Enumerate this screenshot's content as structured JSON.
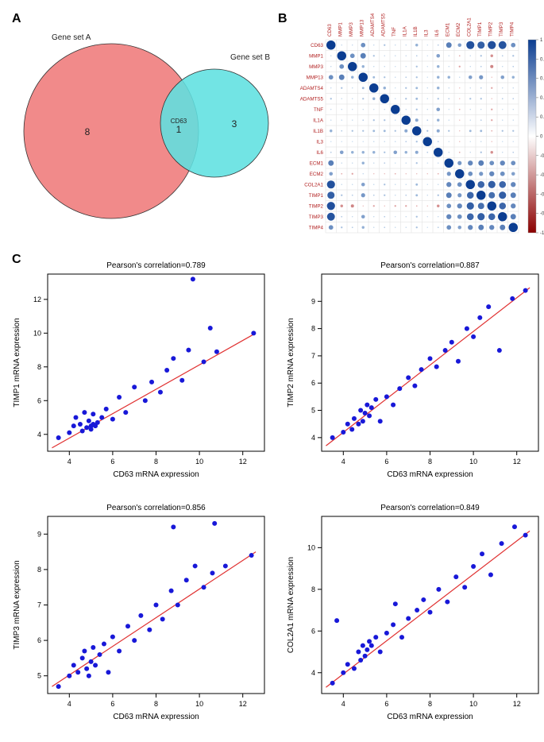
{
  "panelA": {
    "label": "A",
    "left_set_label": "Gene set A",
    "right_set_label": "Gene set B",
    "left_count": 8,
    "right_count": 3,
    "overlap_count": 1,
    "overlap_gene": "CD63",
    "left_color": "#f08080",
    "right_color": "#5fe0e0",
    "overlap_color_approx": "#8f9f9f"
  },
  "panelB": {
    "label": "B",
    "genes": [
      "CD63",
      "MMP1",
      "MMP3",
      "MMP13",
      "ADAMTS4",
      "ADAMTS5",
      "TNF",
      "IL1A",
      "IL1B",
      "IL3",
      "IL6",
      "ECM1",
      "ECM2",
      "COL2A1",
      "TIMP1",
      "TIMP2",
      "TIMP3",
      "TIMP4"
    ],
    "colorbar_min": -1,
    "colorbar_max": 1,
    "colorbar_ticks": [
      -1,
      -0.8,
      -0.6,
      -0.4,
      -0.2,
      0,
      0.2,
      0.4,
      0.6,
      0.8,
      1
    ],
    "pos_color_strong": "#0b3d91",
    "pos_color_mid": "#6fa8dc",
    "pos_color_weak": "#cfe2f3",
    "neg_color_weak": "#f4cccc",
    "neg_color_mid": "#e06666",
    "neg_color_strong": "#8b0000",
    "matrix": [
      [
        1.0,
        0.1,
        0.1,
        0.5,
        0.1,
        0.2,
        0.1,
        0.1,
        0.3,
        0.05,
        0.15,
        0.6,
        0.4,
        0.88,
        0.79,
        0.89,
        0.86,
        0.5
      ],
      [
        0.1,
        1.0,
        0.5,
        0.6,
        0.2,
        0.1,
        0.1,
        0.1,
        0.15,
        0.05,
        0.4,
        0.1,
        -0.15,
        0.1,
        0.2,
        -0.3,
        0.15,
        0.2
      ],
      [
        0.1,
        0.5,
        1.0,
        0.3,
        0.1,
        0.1,
        0.05,
        0.1,
        0.2,
        0.05,
        0.3,
        0.1,
        -0.2,
        0.1,
        0.15,
        -0.35,
        0.1,
        0.15
      ],
      [
        0.5,
        0.6,
        0.3,
        1.0,
        0.25,
        0.2,
        0.1,
        0.15,
        0.2,
        0.05,
        0.3,
        0.3,
        0.1,
        0.4,
        0.45,
        -0.1,
        0.4,
        0.3
      ],
      [
        0.1,
        0.2,
        0.1,
        0.25,
        1.0,
        0.3,
        0.05,
        0.2,
        0.25,
        0.1,
        0.3,
        0.1,
        -0.1,
        0.1,
        0.15,
        -0.2,
        0.1,
        0.1
      ],
      [
        0.2,
        0.1,
        0.1,
        0.2,
        0.3,
        1.0,
        0.1,
        0.2,
        0.25,
        0.1,
        0.2,
        0.15,
        -0.1,
        0.2,
        0.2,
        -0.1,
        0.15,
        0.15
      ],
      [
        0.1,
        0.1,
        0.05,
        0.1,
        0.05,
        0.1,
        1.0,
        0.1,
        0.2,
        0.1,
        0.4,
        0.05,
        -0.15,
        0.1,
        0.1,
        -0.2,
        0.05,
        0.1
      ],
      [
        0.1,
        0.1,
        0.1,
        0.15,
        0.2,
        0.2,
        0.1,
        1.0,
        0.35,
        0.15,
        0.3,
        0.1,
        -0.1,
        0.1,
        0.15,
        -0.2,
        0.1,
        0.1
      ],
      [
        0.3,
        0.15,
        0.2,
        0.2,
        0.25,
        0.25,
        0.2,
        0.35,
        1.0,
        0.2,
        0.35,
        0.2,
        -0.1,
        0.25,
        0.25,
        -0.15,
        0.2,
        0.2
      ],
      [
        0.05,
        0.05,
        0.05,
        0.05,
        0.1,
        0.1,
        0.1,
        0.15,
        0.2,
        1.0,
        0.15,
        0.05,
        -0.1,
        0.05,
        0.1,
        -0.1,
        0.05,
        0.05
      ],
      [
        0.15,
        0.4,
        0.3,
        0.3,
        0.3,
        0.2,
        0.4,
        0.3,
        0.35,
        0.15,
        1.0,
        0.1,
        -0.15,
        0.1,
        0.2,
        -0.3,
        0.1,
        0.15
      ],
      [
        0.6,
        0.1,
        0.1,
        0.3,
        0.1,
        0.15,
        0.05,
        0.1,
        0.2,
        0.05,
        0.1,
        1.0,
        0.45,
        0.55,
        0.6,
        0.5,
        0.55,
        0.5
      ],
      [
        0.4,
        -0.15,
        -0.2,
        0.1,
        -0.1,
        -0.1,
        -0.15,
        -0.1,
        -0.1,
        -0.1,
        -0.15,
        0.45,
        1.0,
        0.5,
        0.45,
        0.55,
        0.5,
        0.4
      ],
      [
        0.88,
        0.1,
        0.1,
        0.4,
        0.1,
        0.2,
        0.1,
        0.1,
        0.25,
        0.05,
        0.1,
        0.55,
        0.5,
        1.0,
        0.75,
        0.8,
        0.75,
        0.55
      ],
      [
        0.79,
        0.2,
        0.15,
        0.45,
        0.15,
        0.2,
        0.1,
        0.15,
        0.25,
        0.1,
        0.2,
        0.6,
        0.45,
        0.75,
        1.0,
        0.7,
        0.8,
        0.6
      ],
      [
        0.89,
        -0.3,
        -0.35,
        -0.1,
        -0.2,
        -0.1,
        -0.2,
        -0.2,
        -0.15,
        -0.1,
        -0.3,
        0.5,
        0.55,
        0.8,
        0.7,
        1.0,
        0.75,
        0.55
      ],
      [
        0.86,
        0.15,
        0.1,
        0.4,
        0.1,
        0.15,
        0.05,
        0.1,
        0.2,
        0.05,
        0.1,
        0.55,
        0.5,
        0.75,
        0.8,
        0.75,
        1.0,
        0.6
      ],
      [
        0.5,
        0.2,
        0.15,
        0.3,
        0.1,
        0.15,
        0.1,
        0.1,
        0.2,
        0.05,
        0.15,
        0.5,
        0.4,
        0.55,
        0.6,
        0.55,
        0.6,
        1.0
      ]
    ]
  },
  "panelC": {
    "label": "C",
    "xlabel": "CD63 mRNA expression",
    "point_color": "#1818d8",
    "line_color": "#e03030",
    "background": "#ffffff",
    "box_color": "#000000",
    "marker_size": 3,
    "line_width": 1.2,
    "plots": [
      {
        "title": "Pearson's correlation=0.789",
        "ylabel": "TIMP1 mRNA expression",
        "xlim": [
          3,
          13
        ],
        "xticks": [
          4,
          6,
          8,
          10,
          12
        ],
        "ylim": [
          3,
          13.5
        ],
        "yticks": [
          4,
          6,
          8,
          10,
          12
        ],
        "line": {
          "x0": 3.2,
          "y0": 3.2,
          "x1": 12.6,
          "y1": 10.0
        },
        "points": [
          [
            3.5,
            3.8
          ],
          [
            4.0,
            4.1
          ],
          [
            4.2,
            4.5
          ],
          [
            4.3,
            5.0
          ],
          [
            4.5,
            4.6
          ],
          [
            4.6,
            4.2
          ],
          [
            4.7,
            5.3
          ],
          [
            4.8,
            4.4
          ],
          [
            4.9,
            4.8
          ],
          [
            5.0,
            4.5
          ],
          [
            5.0,
            4.3
          ],
          [
            5.1,
            4.6
          ],
          [
            5.1,
            5.2
          ],
          [
            5.2,
            4.5
          ],
          [
            5.3,
            4.7
          ],
          [
            5.5,
            5.0
          ],
          [
            5.7,
            5.5
          ],
          [
            6.0,
            4.9
          ],
          [
            6.3,
            6.2
          ],
          [
            6.6,
            5.3
          ],
          [
            7.0,
            6.8
          ],
          [
            7.5,
            6.0
          ],
          [
            7.8,
            7.1
          ],
          [
            8.2,
            6.5
          ],
          [
            8.5,
            7.8
          ],
          [
            8.8,
            8.5
          ],
          [
            9.2,
            7.2
          ],
          [
            9.5,
            9.0
          ],
          [
            9.7,
            13.2
          ],
          [
            10.2,
            8.3
          ],
          [
            10.5,
            10.3
          ],
          [
            10.8,
            8.9
          ],
          [
            12.5,
            10.0
          ]
        ]
      },
      {
        "title": "Pearson's correlation=0.887",
        "ylabel": "TIMP2 mRNA expression",
        "xlim": [
          3,
          13
        ],
        "xticks": [
          4,
          6,
          8,
          10,
          12
        ],
        "ylim": [
          3.5,
          10
        ],
        "yticks": [
          4,
          5,
          6,
          7,
          8,
          9
        ],
        "line": {
          "x0": 3.2,
          "y0": 3.7,
          "x1": 12.6,
          "y1": 9.5
        },
        "points": [
          [
            3.5,
            4.0
          ],
          [
            4.0,
            4.2
          ],
          [
            4.2,
            4.5
          ],
          [
            4.4,
            4.3
          ],
          [
            4.5,
            4.7
          ],
          [
            4.7,
            4.5
          ],
          [
            4.8,
            5.0
          ],
          [
            4.9,
            4.6
          ],
          [
            5.0,
            4.9
          ],
          [
            5.1,
            5.2
          ],
          [
            5.2,
            4.8
          ],
          [
            5.3,
            5.1
          ],
          [
            5.5,
            5.4
          ],
          [
            5.7,
            4.6
          ],
          [
            6.0,
            5.5
          ],
          [
            6.3,
            5.2
          ],
          [
            6.6,
            5.8
          ],
          [
            7.0,
            6.2
          ],
          [
            7.3,
            5.9
          ],
          [
            7.6,
            6.5
          ],
          [
            8.0,
            6.9
          ],
          [
            8.3,
            6.6
          ],
          [
            8.7,
            7.2
          ],
          [
            9.0,
            7.5
          ],
          [
            9.3,
            6.8
          ],
          [
            9.7,
            8.0
          ],
          [
            10.0,
            7.7
          ],
          [
            10.3,
            8.4
          ],
          [
            10.7,
            8.8
          ],
          [
            11.2,
            7.2
          ],
          [
            11.8,
            9.1
          ],
          [
            12.4,
            9.4
          ]
        ]
      },
      {
        "title": "Pearson's correlation=0.856",
        "ylabel": "TIMP3 mRNA expression",
        "xlim": [
          3,
          13
        ],
        "xticks": [
          4,
          6,
          8,
          10,
          12
        ],
        "ylim": [
          4.5,
          9.5
        ],
        "yticks": [
          5,
          6,
          7,
          8,
          9
        ],
        "line": {
          "x0": 3.2,
          "y0": 4.7,
          "x1": 12.6,
          "y1": 8.5
        },
        "points": [
          [
            3.5,
            4.7
          ],
          [
            4.0,
            5.0
          ],
          [
            4.2,
            5.3
          ],
          [
            4.4,
            5.1
          ],
          [
            4.6,
            5.5
          ],
          [
            4.7,
            5.7
          ],
          [
            4.8,
            5.2
          ],
          [
            4.9,
            5.0
          ],
          [
            5.0,
            5.4
          ],
          [
            5.1,
            5.8
          ],
          [
            5.2,
            5.3
          ],
          [
            5.4,
            5.6
          ],
          [
            5.6,
            5.9
          ],
          [
            5.8,
            5.1
          ],
          [
            6.0,
            6.1
          ],
          [
            6.3,
            5.7
          ],
          [
            6.7,
            6.4
          ],
          [
            7.0,
            6.0
          ],
          [
            7.3,
            6.7
          ],
          [
            7.7,
            6.3
          ],
          [
            8.0,
            7.0
          ],
          [
            8.3,
            6.6
          ],
          [
            8.7,
            7.4
          ],
          [
            8.8,
            9.2
          ],
          [
            9.0,
            7.0
          ],
          [
            9.4,
            7.7
          ],
          [
            9.8,
            8.1
          ],
          [
            10.2,
            7.5
          ],
          [
            10.6,
            7.9
          ],
          [
            10.7,
            9.3
          ],
          [
            11.2,
            8.1
          ],
          [
            12.4,
            8.4
          ]
        ]
      },
      {
        "title": "Pearson's correlation=0.849",
        "ylabel": "COL2A1 mRNA expression",
        "xlim": [
          3,
          13
        ],
        "xticks": [
          4,
          6,
          8,
          10,
          12
        ],
        "ylim": [
          3,
          11.5
        ],
        "yticks": [
          4,
          6,
          8,
          10
        ],
        "line": {
          "x0": 3.2,
          "y0": 3.3,
          "x1": 12.6,
          "y1": 10.8
        },
        "points": [
          [
            3.5,
            3.5
          ],
          [
            3.7,
            6.5
          ],
          [
            4.0,
            4.0
          ],
          [
            4.2,
            4.4
          ],
          [
            4.5,
            4.2
          ],
          [
            4.7,
            5.0
          ],
          [
            4.8,
            4.6
          ],
          [
            4.9,
            5.3
          ],
          [
            5.0,
            4.8
          ],
          [
            5.1,
            5.1
          ],
          [
            5.2,
            5.5
          ],
          [
            5.3,
            5.3
          ],
          [
            5.5,
            5.7
          ],
          [
            5.7,
            5.0
          ],
          [
            6.0,
            5.9
          ],
          [
            6.3,
            6.3
          ],
          [
            6.4,
            7.3
          ],
          [
            6.7,
            5.7
          ],
          [
            7.0,
            6.6
          ],
          [
            7.4,
            7.0
          ],
          [
            7.7,
            7.5
          ],
          [
            8.0,
            6.9
          ],
          [
            8.4,
            8.0
          ],
          [
            8.8,
            7.4
          ],
          [
            9.2,
            8.6
          ],
          [
            9.6,
            8.1
          ],
          [
            10.0,
            9.1
          ],
          [
            10.4,
            9.7
          ],
          [
            10.8,
            8.7
          ],
          [
            11.3,
            10.2
          ],
          [
            11.9,
            11.0
          ],
          [
            12.4,
            10.6
          ]
        ]
      }
    ]
  }
}
